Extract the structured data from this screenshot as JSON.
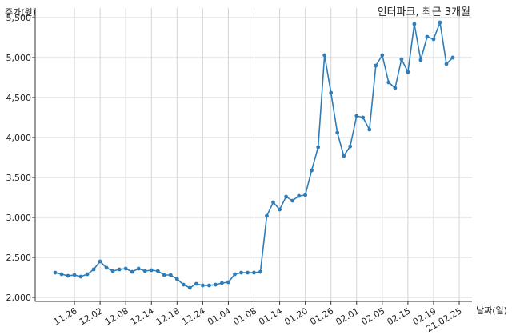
{
  "chart_data": {
    "type": "line",
    "title": "인터파크, 최근 3개월",
    "ylabel": "주가(원)",
    "xlabel": "날짜(일)",
    "ylim": [
      1950,
      5620
    ],
    "grid": true,
    "line_color": "#2e7db8",
    "yticks": [
      2000,
      2500,
      3000,
      3500,
      4000,
      4500,
      5000,
      5500
    ],
    "ytick_labels": [
      "2,000",
      "2,500",
      "3,000",
      "3,500",
      "4,000",
      "4,500",
      "5,000",
      "5,500"
    ],
    "xtick_labels": [
      "11.26",
      "12.02",
      "12.08",
      "12.14",
      "12.18",
      "12.24",
      "01.04",
      "01.08",
      "01.14",
      "01.20",
      "01.26",
      "02.01",
      "02.05",
      "02.15",
      "02.19",
      "21.02.25"
    ],
    "xtick_index": [
      3,
      7,
      11,
      15,
      19,
      23,
      27,
      31,
      35,
      39,
      43,
      47,
      51,
      55,
      59,
      63
    ],
    "series": [
      {
        "values": [
          2310,
          2290,
          2270,
          2280,
          2260,
          2290,
          2350,
          2450,
          2370,
          2330,
          2350,
          2360,
          2320,
          2360,
          2330,
          2340,
          2330,
          2280,
          2280,
          2230,
          2160,
          2120,
          2170,
          2150,
          2150,
          2160,
          2180,
          2190,
          2290,
          2310,
          2310,
          2310,
          2320,
          3020,
          3190,
          3100,
          3260,
          3210,
          3270,
          3280,
          3590,
          3880,
          5030,
          4560,
          4060,
          3770,
          3890,
          4270,
          4250,
          4100,
          4900,
          5030,
          4690,
          4620,
          4980,
          4820,
          5420,
          4970,
          5260,
          5230,
          5440,
          4920,
          5000
        ]
      }
    ]
  }
}
